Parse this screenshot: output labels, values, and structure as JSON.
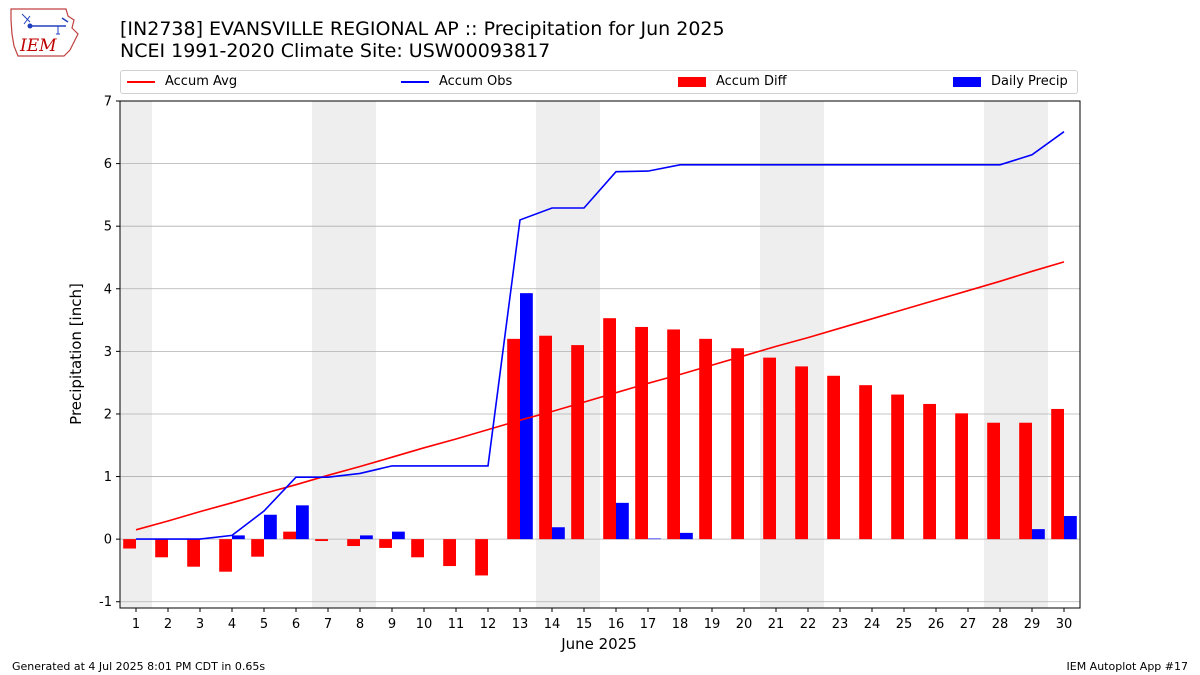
{
  "logo": {
    "text": "IEM",
    "color": "#c00000"
  },
  "header": {
    "title_line1": "[IN2738] EVANSVILLE REGIONAL AP :: Precipitation for Jun 2025",
    "title_line2": "NCEI 1991-2020 Climate Site: USW00093817"
  },
  "legend": {
    "accum_avg": "Accum Avg",
    "accum_obs": "Accum Obs",
    "accum_diff": "Accum Diff",
    "daily_precip": "Daily Precip"
  },
  "footer": {
    "generated": "Generated at 4 Jul 2025 8:01 PM CDT in 0.65s",
    "app": "IEM Autoplot App #17"
  },
  "chart_data": {
    "type": "bar",
    "xlabel": "June 2025",
    "ylabel": "Precipitation [inch]",
    "ylim": [
      -1.1,
      7
    ],
    "yticks": [
      -1,
      0,
      1,
      2,
      3,
      4,
      5,
      6,
      7
    ],
    "grid": true,
    "legend_position": "top",
    "weekend_shading_color": "#eeeeee",
    "shaded_days": [
      1,
      7,
      8,
      14,
      15,
      21,
      22,
      28,
      29
    ],
    "x": [
      1,
      2,
      3,
      4,
      5,
      6,
      7,
      8,
      9,
      10,
      11,
      12,
      13,
      14,
      15,
      16,
      17,
      18,
      19,
      20,
      21,
      22,
      23,
      24,
      25,
      26,
      27,
      28,
      29,
      30
    ],
    "series": [
      {
        "name": "Accum Avg",
        "type": "line",
        "color": "#ff0000",
        "values": [
          0.15,
          0.29,
          0.44,
          0.58,
          0.73,
          0.87,
          1.02,
          1.16,
          1.31,
          1.46,
          1.6,
          1.75,
          1.9,
          2.04,
          2.19,
          2.34,
          2.49,
          2.63,
          2.78,
          2.93,
          3.08,
          3.22,
          3.37,
          3.52,
          3.67,
          3.82,
          3.97,
          4.12,
          4.28,
          4.43
        ]
      },
      {
        "name": "Accum Obs",
        "type": "line",
        "color": "#0000ff",
        "values": [
          0.0,
          0.0,
          0.0,
          0.06,
          0.45,
          0.99,
          0.99,
          1.05,
          1.17,
          1.17,
          1.17,
          1.17,
          5.1,
          5.29,
          5.29,
          5.87,
          5.88,
          5.98,
          5.98,
          5.98,
          5.98,
          5.98,
          5.98,
          5.98,
          5.98,
          5.98,
          5.98,
          5.98,
          6.14,
          6.51
        ]
      },
      {
        "name": "Accum Diff",
        "type": "bar",
        "color": "#ff0000",
        "values": [
          -0.15,
          -0.29,
          -0.44,
          -0.52,
          -0.28,
          0.12,
          -0.03,
          -0.11,
          -0.14,
          -0.29,
          -0.43,
          -0.58,
          3.2,
          3.25,
          3.1,
          3.53,
          3.39,
          3.35,
          3.2,
          3.05,
          2.9,
          2.76,
          2.61,
          2.46,
          2.31,
          2.16,
          2.01,
          1.86,
          1.86,
          2.08
        ]
      },
      {
        "name": "Daily Precip",
        "type": "bar",
        "color": "#0000ff",
        "values": [
          0,
          0,
          0,
          0.06,
          0.39,
          0.54,
          0,
          0.06,
          0.12,
          0,
          0,
          0,
          3.93,
          0.19,
          0,
          0.58,
          0.01,
          0.1,
          0,
          0,
          0,
          0,
          0,
          0,
          0,
          0,
          0,
          0,
          0.16,
          0.37
        ]
      }
    ]
  }
}
